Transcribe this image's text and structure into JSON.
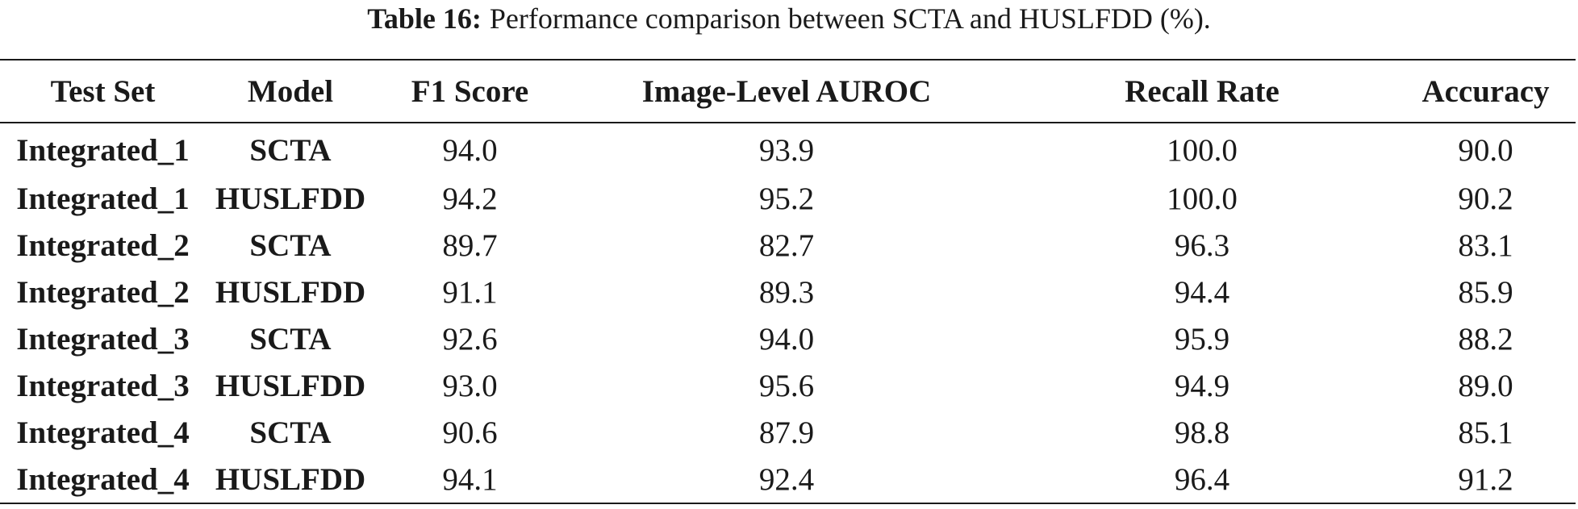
{
  "caption": {
    "label": "Table 16:",
    "text": "Performance comparison between SCTA and HUSLFDD (%)."
  },
  "table": {
    "headers": [
      "Test Set",
      "Model",
      "F1 Score",
      "Image-Level AUROC",
      "Recall Rate",
      "Accuracy"
    ],
    "rows": [
      [
        "Integrated_1",
        "SCTA",
        "94.0",
        "93.9",
        "100.0",
        "90.0"
      ],
      [
        "Integrated_1",
        "HUSLFDD",
        "94.2",
        "95.2",
        "100.0",
        "90.2"
      ],
      [
        "Integrated_2",
        "SCTA",
        "89.7",
        "82.7",
        "96.3",
        "83.1"
      ],
      [
        "Integrated_2",
        "HUSLFDD",
        "91.1",
        "89.3",
        "94.4",
        "85.9"
      ],
      [
        "Integrated_3",
        "SCTA",
        "92.6",
        "94.0",
        "95.9",
        "88.2"
      ],
      [
        "Integrated_3",
        "HUSLFDD",
        "93.0",
        "95.6",
        "94.9",
        "89.0"
      ],
      [
        "Integrated_4",
        "SCTA",
        "90.6",
        "87.9",
        "98.8",
        "85.1"
      ],
      [
        "Integrated_4",
        "HUSLFDD",
        "94.1",
        "92.4",
        "96.4",
        "91.2"
      ]
    ]
  }
}
